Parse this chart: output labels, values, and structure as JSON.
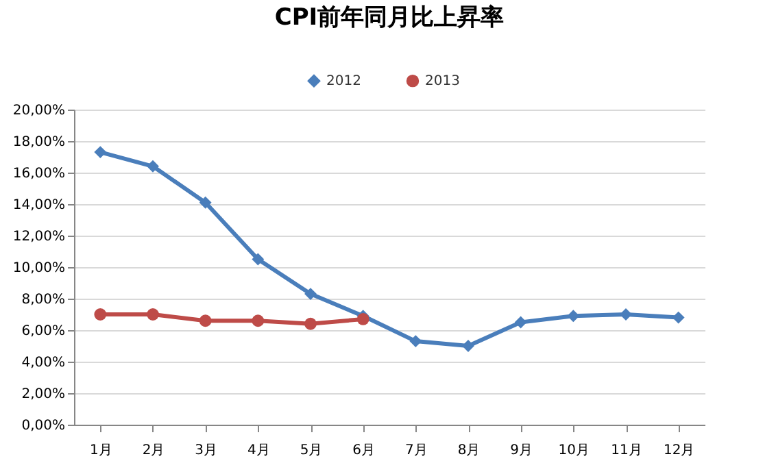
{
  "chart_data": {
    "type": "line",
    "title": "CPI前年同月比上昇率",
    "categories": [
      "1月",
      "2月",
      "3月",
      "4月",
      "5月",
      "6月",
      "7月",
      "8月",
      "9月",
      "10月",
      "11月",
      "12月"
    ],
    "series": [
      {
        "name": "2012",
        "color": "#4a7ebb",
        "marker": "diamond",
        "values": [
          17.3,
          16.4,
          14.1,
          10.5,
          8.3,
          6.9,
          5.3,
          5.0,
          6.5,
          6.9,
          7.0,
          6.8
        ]
      },
      {
        "name": "2013",
        "color": "#be4b48",
        "marker": "circle",
        "values": [
          7.0,
          7.0,
          6.6,
          6.6,
          6.4,
          6.7,
          null,
          null,
          null,
          null,
          null,
          null
        ]
      }
    ],
    "ylim": [
      0,
      20
    ],
    "yticks": [
      {
        "value": 0,
        "label": "0,00%"
      },
      {
        "value": 2,
        "label": "2,00%"
      },
      {
        "value": 4,
        "label": "4,00%"
      },
      {
        "value": 6,
        "label": "6,00%"
      },
      {
        "value": 8,
        "label": "8,00%"
      },
      {
        "value": 10,
        "label": "10,00%"
      },
      {
        "value": 12,
        "label": "12,00%"
      },
      {
        "value": 14,
        "label": "14,00%"
      },
      {
        "value": 16,
        "label": "16,00%"
      },
      {
        "value": 18,
        "label": "18,00%"
      },
      {
        "value": 20,
        "label": "20,00%"
      }
    ],
    "grid": "y",
    "legend": "top",
    "line_style": "solid"
  }
}
